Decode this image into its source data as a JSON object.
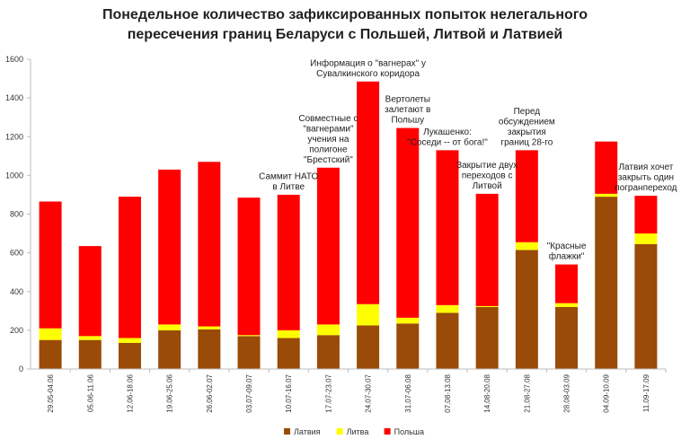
{
  "chart_data": {
    "type": "bar",
    "stacked": true,
    "title_line1": "Понедельное количество зафиксированных попыток нелегального",
    "title_line2": "пересечения границ Беларуси с Польшей, Литвой и Латвией",
    "ylim": [
      0,
      1600
    ],
    "yticks": [
      "0",
      "200",
      "400",
      "600",
      "800",
      "1000",
      "1200",
      "1400",
      "1600"
    ],
    "categories": [
      "29.05-04.06",
      "05.06-11.06",
      "12.06-18.06",
      "19.06-25.06",
      "26.06-02.07",
      "03.07-09.07",
      "10.07-16.07",
      "17.07-23.07",
      "24.07-30.07",
      "31.07-06.08",
      "07.08-13.08",
      "14.08-20.08",
      "21.08-27.08",
      "28.08-03.09",
      "04.09-10.09",
      "11.09-17.09"
    ],
    "series": [
      {
        "name": "Латвия",
        "color": "#9A4B07",
        "values": [
          150,
          150,
          135,
          200,
          205,
          170,
          160,
          175,
          225,
          235,
          290,
          320,
          615,
          320,
          890,
          645
        ]
      },
      {
        "name": "Литва",
        "color": "#FFFF00",
        "values": [
          60,
          20,
          25,
          30,
          15,
          5,
          40,
          55,
          110,
          30,
          40,
          5,
          40,
          20,
          15,
          55
        ]
      },
      {
        "name": "Польша",
        "color": "#FF0000",
        "values": [
          655,
          465,
          730,
          800,
          850,
          710,
          700,
          810,
          1150,
          980,
          800,
          580,
          475,
          200,
          270,
          195
        ]
      }
    ],
    "legend_position": "bottom-center",
    "annotations": [
      {
        "lines": [
          "Саммит НАТО",
          "в Литве"
        ],
        "category": 6
      },
      {
        "lines": [
          "Совместные с",
          "\"вагнерами\"",
          "учения на",
          "полигоне",
          "\"Брестский\""
        ],
        "category": 7
      },
      {
        "lines": [
          "Информация о \"вагнерах\" у",
          "Сувалкинского коридора"
        ],
        "category": 8
      },
      {
        "lines": [
          "Вертолеты",
          "залетают в",
          "Польшу"
        ],
        "category": 9
      },
      {
        "lines": [
          "Лукашенко:",
          "\"Соседи -- от бога!\""
        ],
        "category": 10
      },
      {
        "lines": [
          "Закрытие двух",
          "переходов с",
          "Литвой"
        ],
        "category": 11
      },
      {
        "lines": [
          "Перед",
          "обсуждением",
          "закрытия",
          "границ 28-го"
        ],
        "category": 12
      },
      {
        "lines": [
          "\"Красные",
          "флажки\""
        ],
        "category": 13
      },
      {
        "lines": [
          "Латвия хочет",
          "закрыть один",
          "погранпереход"
        ],
        "category": 15
      }
    ]
  }
}
